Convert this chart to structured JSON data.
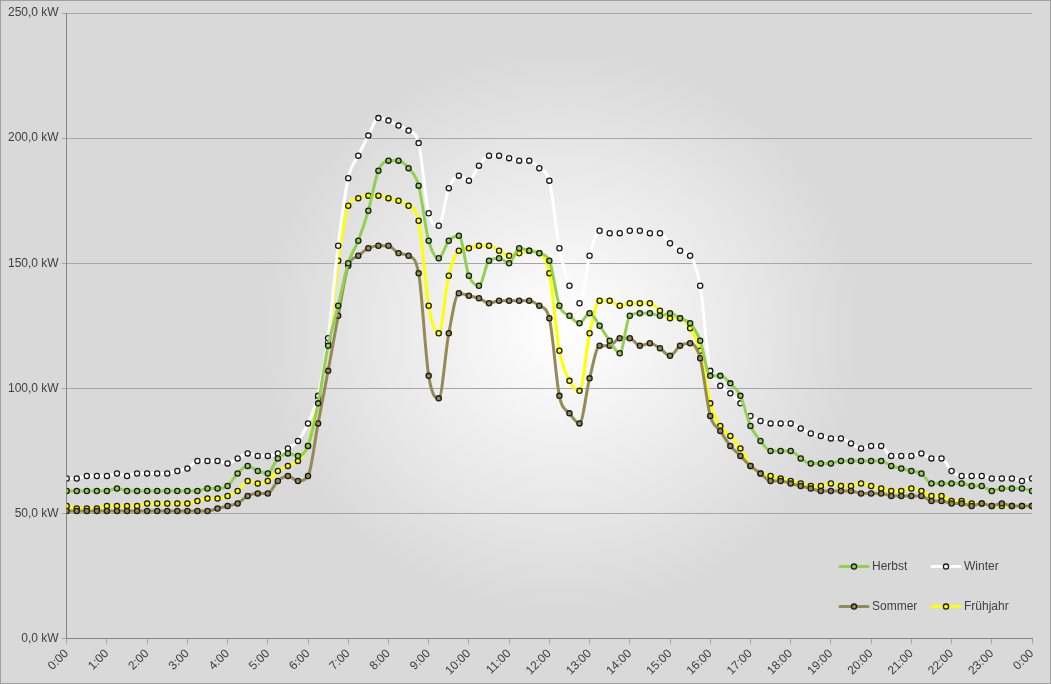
{
  "chart_data": {
    "type": "line",
    "marker": "circle",
    "line_style": "solid",
    "grid": "y",
    "legend": "bottom right",
    "xlim": [
      0,
      24
    ],
    "xticks": [
      {
        "value": 0,
        "label": "0:00"
      },
      {
        "value": 1,
        "label": "1:00"
      },
      {
        "value": 2,
        "label": "2:00"
      },
      {
        "value": 3,
        "label": "3:00"
      },
      {
        "value": 4,
        "label": "4:00"
      },
      {
        "value": 5,
        "label": "5:00"
      },
      {
        "value": 6,
        "label": "6:00"
      },
      {
        "value": 7,
        "label": "7:00"
      },
      {
        "value": 8,
        "label": "8:00"
      },
      {
        "value": 9,
        "label": "9:00"
      },
      {
        "value": 10,
        "label": "10:00"
      },
      {
        "value": 11,
        "label": "11:00"
      },
      {
        "value": 12,
        "label": "12:00"
      },
      {
        "value": 13,
        "label": "13:00"
      },
      {
        "value": 14,
        "label": "14:00"
      },
      {
        "value": 15,
        "label": "15:00"
      },
      {
        "value": 16,
        "label": "16:00"
      },
      {
        "value": 17,
        "label": "17:00"
      },
      {
        "value": 18,
        "label": "18:00"
      },
      {
        "value": 19,
        "label": "19:00"
      },
      {
        "value": 20,
        "label": "20:00"
      },
      {
        "value": 21,
        "label": "21:00"
      },
      {
        "value": 22,
        "label": "22:00"
      },
      {
        "value": 23,
        "label": "23:00"
      },
      {
        "value": 24,
        "label": "0:00"
      }
    ],
    "ylim": [
      0,
      250
    ],
    "yticks": [
      {
        "value": 0,
        "label": "0,0 kW"
      },
      {
        "value": 50,
        "label": "50,0 kW"
      },
      {
        "value": 100,
        "label": "100,0 kW"
      },
      {
        "value": 150,
        "label": "150,0 kW"
      },
      {
        "value": 200,
        "label": "200,0 kW"
      },
      {
        "value": 250,
        "label": "250,0 kW"
      }
    ],
    "x": [
      0,
      0.25,
      0.5,
      0.75,
      1,
      1.25,
      1.5,
      1.75,
      2,
      2.25,
      2.5,
      2.75,
      3,
      3.25,
      3.5,
      3.75,
      4,
      4.25,
      4.5,
      4.75,
      5,
      5.25,
      5.5,
      5.75,
      6,
      6.25,
      6.5,
      6.75,
      7,
      7.25,
      7.5,
      7.75,
      8,
      8.25,
      8.5,
      8.75,
      9,
      9.25,
      9.5,
      9.75,
      10,
      10.25,
      10.5,
      10.75,
      11,
      11.25,
      11.5,
      11.75,
      12,
      12.25,
      12.5,
      12.75,
      13,
      13.25,
      13.5,
      13.75,
      14,
      14.25,
      14.5,
      14.75,
      15,
      15.25,
      15.5,
      15.75,
      16,
      16.25,
      16.5,
      16.75,
      17,
      17.25,
      17.5,
      17.75,
      18,
      18.25,
      18.5,
      18.75,
      19,
      19.25,
      19.5,
      19.75,
      20,
      20.25,
      20.5,
      20.75,
      21,
      21.25,
      21.5,
      21.75,
      22,
      22.25,
      22.5,
      22.75,
      23,
      23.25,
      23.5,
      23.75,
      24
    ],
    "series": [
      {
        "name": "Herbst",
        "color": "#92d050",
        "values": [
          59,
          59,
          59,
          59,
          59,
          60,
          59,
          59,
          59,
          59,
          59,
          59,
          59,
          59,
          60,
          60,
          61,
          66,
          69,
          67,
          66,
          72,
          74,
          73,
          77,
          94,
          117,
          133,
          150,
          159,
          171,
          187,
          191,
          191,
          188,
          181,
          159,
          152,
          159,
          161,
          145,
          141,
          151,
          152,
          150,
          156,
          155,
          154,
          151,
          133,
          129,
          126,
          130,
          125,
          119,
          114,
          129,
          130,
          130,
          129,
          130,
          128,
          126,
          119,
          105,
          105,
          102,
          97,
          85,
          79,
          75,
          75,
          75,
          72,
          70,
          70,
          70,
          71,
          71,
          71,
          71,
          71,
          69,
          68,
          67,
          66,
          62,
          62,
          62,
          62,
          61,
          61,
          59,
          60,
          60,
          60,
          59
        ]
      },
      {
        "name": "Winter",
        "color": "#ffffff",
        "values": [
          64,
          64,
          65,
          65,
          65,
          66,
          65,
          66,
          66,
          66,
          66,
          67,
          68,
          71,
          71,
          71,
          70,
          72,
          74,
          73,
          73,
          74,
          76,
          79,
          86,
          97,
          120,
          157,
          184,
          193,
          201,
          208,
          207,
          205,
          203,
          198,
          170,
          165,
          180,
          185,
          183,
          189,
          193,
          193,
          192,
          191,
          191,
          188,
          183,
          156,
          141,
          134,
          153,
          163,
          162,
          162,
          163,
          163,
          162,
          162,
          158,
          155,
          153,
          141,
          107,
          101,
          98,
          94,
          89,
          87,
          86,
          86,
          86,
          84,
          82,
          81,
          80,
          80,
          78,
          76,
          77,
          77,
          73,
          73,
          73,
          74,
          72,
          72,
          67,
          65,
          65,
          65,
          64,
          64,
          64,
          63,
          64
        ]
      },
      {
        "name": "Sommer",
        "color": "#948a54",
        "values": [
          51,
          51,
          51,
          51,
          51,
          51,
          51,
          51,
          51,
          51,
          51,
          51,
          51,
          51,
          51,
          52,
          53,
          54,
          57,
          58,
          58,
          63,
          65,
          63,
          65,
          86,
          107,
          129,
          149,
          153,
          156,
          157,
          157,
          154,
          153,
          146,
          105,
          96,
          122,
          138,
          137,
          136,
          134,
          135,
          135,
          135,
          135,
          133,
          128,
          97,
          90,
          86,
          104,
          117,
          117,
          120,
          120,
          117,
          118,
          116,
          113,
          117,
          118,
          112,
          89,
          83,
          77,
          73,
          69,
          66,
          63,
          63,
          62,
          61,
          60,
          59,
          59,
          59,
          59,
          58,
          58,
          58,
          57,
          57,
          57,
          57,
          55,
          55,
          54,
          54,
          53,
          54,
          53,
          54,
          53,
          53,
          53
        ]
      },
      {
        "name": "Frühjahr",
        "color": "#ffff00",
        "values": [
          53,
          52,
          52,
          52,
          53,
          53,
          53,
          53,
          54,
          54,
          54,
          54,
          54,
          55,
          56,
          56,
          57,
          59,
          63,
          62,
          63,
          67,
          69,
          71,
          77,
          96,
          118,
          151,
          173,
          176,
          177,
          177,
          176,
          175,
          173,
          167,
          133,
          122,
          145,
          155,
          156,
          157,
          157,
          155,
          153,
          154,
          155,
          154,
          146,
          115,
          103,
          99,
          122,
          135,
          135,
          133,
          134,
          134,
          134,
          131,
          128,
          128,
          124,
          115,
          94,
          85,
          81,
          76,
          69,
          66,
          65,
          64,
          63,
          62,
          61,
          61,
          62,
          61,
          61,
          62,
          61,
          60,
          59,
          59,
          60,
          59,
          57,
          57,
          55,
          55,
          54,
          54,
          53,
          53,
          53,
          53,
          53
        ]
      }
    ]
  }
}
